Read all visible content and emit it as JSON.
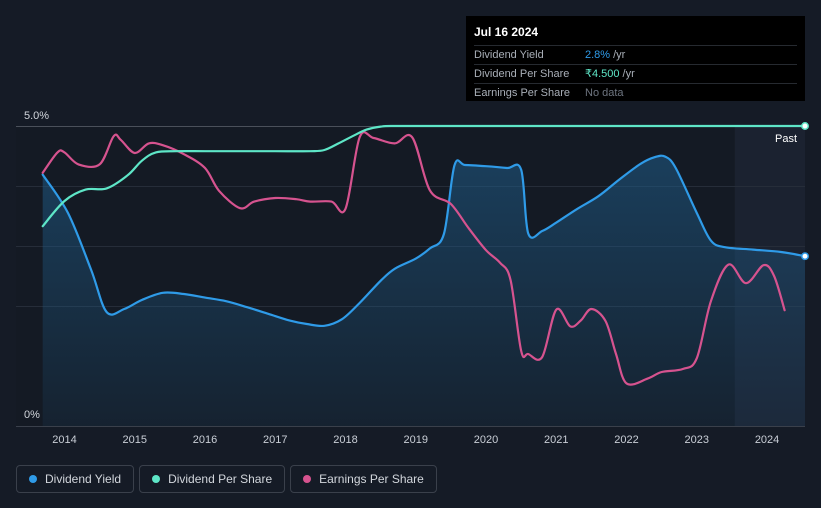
{
  "chart_data": {
    "type": "line",
    "y_axis_labels": [
      "5.0%",
      "0%"
    ],
    "ylim": [
      0,
      5
    ],
    "x_ticks": [
      "2014",
      "2015",
      "2016",
      "2017",
      "2018",
      "2019",
      "2020",
      "2021",
      "2022",
      "2023",
      "2024"
    ],
    "xlim": [
      2013.31,
      2024.54
    ],
    "past_label": "Past",
    "grid": true,
    "series": [
      {
        "name": "Dividend Yield",
        "color": "#2f9be8",
        "unit": "percent",
        "area": true,
        "points": [
          [
            2013.69,
            4.19
          ],
          [
            2014.05,
            3.55
          ],
          [
            2014.38,
            2.6
          ],
          [
            2014.6,
            1.9
          ],
          [
            2014.85,
            1.95
          ],
          [
            2015.1,
            2.1
          ],
          [
            2015.4,
            2.22
          ],
          [
            2015.7,
            2.2
          ],
          [
            2016.0,
            2.14
          ],
          [
            2016.3,
            2.08
          ],
          [
            2016.6,
            1.98
          ],
          [
            2016.9,
            1.87
          ],
          [
            2017.2,
            1.76
          ],
          [
            2017.45,
            1.7
          ],
          [
            2017.7,
            1.67
          ],
          [
            2017.95,
            1.78
          ],
          [
            2018.2,
            2.05
          ],
          [
            2018.5,
            2.42
          ],
          [
            2018.7,
            2.62
          ],
          [
            2019.0,
            2.79
          ],
          [
            2019.2,
            2.96
          ],
          [
            2019.4,
            3.2
          ],
          [
            2019.55,
            4.34
          ],
          [
            2019.7,
            4.35
          ],
          [
            2020.0,
            4.33
          ],
          [
            2020.3,
            4.3
          ],
          [
            2020.5,
            4.27
          ],
          [
            2020.6,
            3.21
          ],
          [
            2020.8,
            3.25
          ],
          [
            2021.0,
            3.39
          ],
          [
            2021.3,
            3.62
          ],
          [
            2021.6,
            3.83
          ],
          [
            2021.9,
            4.11
          ],
          [
            2022.2,
            4.37
          ],
          [
            2022.4,
            4.48
          ],
          [
            2022.55,
            4.49
          ],
          [
            2022.7,
            4.3
          ],
          [
            2023.0,
            3.55
          ],
          [
            2023.2,
            3.09
          ],
          [
            2023.4,
            2.98
          ],
          [
            2023.8,
            2.94
          ],
          [
            2024.2,
            2.9
          ],
          [
            2024.54,
            2.83
          ]
        ]
      },
      {
        "name": "Dividend Per Share",
        "color": "#5ee6c7",
        "unit": "INR",
        "points": [
          [
            2013.69,
            3.33
          ],
          [
            2014.0,
            3.75
          ],
          [
            2014.3,
            3.94
          ],
          [
            2014.6,
            3.96
          ],
          [
            2014.9,
            4.18
          ],
          [
            2015.1,
            4.42
          ],
          [
            2015.3,
            4.56
          ],
          [
            2015.6,
            4.58
          ],
          [
            2016.0,
            4.58
          ],
          [
            2016.5,
            4.58
          ],
          [
            2017.0,
            4.58
          ],
          [
            2017.5,
            4.58
          ],
          [
            2017.7,
            4.6
          ],
          [
            2017.9,
            4.71
          ],
          [
            2018.1,
            4.83
          ],
          [
            2018.3,
            4.94
          ],
          [
            2018.5,
            4.99
          ],
          [
            2018.7,
            5.0
          ],
          [
            2019.5,
            5.0
          ],
          [
            2020.5,
            5.0
          ],
          [
            2021.5,
            5.0
          ],
          [
            2022.5,
            5.0
          ],
          [
            2023.5,
            5.0
          ],
          [
            2024.54,
            5.0
          ]
        ]
      },
      {
        "name": "Earnings Per Share",
        "color": "#d6538f",
        "unit": "INR",
        "points": [
          [
            2013.69,
            4.22
          ],
          [
            2013.9,
            4.56
          ],
          [
            2014.0,
            4.56
          ],
          [
            2014.2,
            4.36
          ],
          [
            2014.5,
            4.36
          ],
          [
            2014.7,
            4.83
          ],
          [
            2014.8,
            4.77
          ],
          [
            2015.0,
            4.55
          ],
          [
            2015.2,
            4.71
          ],
          [
            2015.4,
            4.68
          ],
          [
            2015.7,
            4.53
          ],
          [
            2016.0,
            4.3
          ],
          [
            2016.2,
            3.92
          ],
          [
            2016.5,
            3.63
          ],
          [
            2016.7,
            3.74
          ],
          [
            2017.0,
            3.8
          ],
          [
            2017.3,
            3.78
          ],
          [
            2017.5,
            3.74
          ],
          [
            2017.8,
            3.74
          ],
          [
            2018.0,
            3.62
          ],
          [
            2018.2,
            4.81
          ],
          [
            2018.4,
            4.8
          ],
          [
            2018.7,
            4.71
          ],
          [
            2018.95,
            4.81
          ],
          [
            2019.2,
            3.93
          ],
          [
            2019.5,
            3.7
          ],
          [
            2019.75,
            3.3
          ],
          [
            2020.0,
            2.93
          ],
          [
            2020.2,
            2.72
          ],
          [
            2020.35,
            2.43
          ],
          [
            2020.5,
            1.25
          ],
          [
            2020.6,
            1.2
          ],
          [
            2020.8,
            1.15
          ],
          [
            2021.0,
            1.94
          ],
          [
            2021.2,
            1.66
          ],
          [
            2021.35,
            1.76
          ],
          [
            2021.5,
            1.95
          ],
          [
            2021.7,
            1.75
          ],
          [
            2021.85,
            1.2
          ],
          [
            2022.0,
            0.71
          ],
          [
            2022.3,
            0.79
          ],
          [
            2022.5,
            0.9
          ],
          [
            2022.8,
            0.95
          ],
          [
            2023.0,
            1.13
          ],
          [
            2023.2,
            2.08
          ],
          [
            2023.45,
            2.69
          ],
          [
            2023.7,
            2.38
          ],
          [
            2023.95,
            2.68
          ],
          [
            2024.1,
            2.5
          ],
          [
            2024.25,
            1.93
          ]
        ]
      }
    ],
    "forecast_region": {
      "from": 2023.54,
      "to": 2024.54
    }
  },
  "tooltip": {
    "date": "Jul 16 2024",
    "rows": [
      {
        "label": "Dividend Yield",
        "value": "2.8%",
        "unit": "/yr",
        "color": "#2f9be8"
      },
      {
        "label": "Dividend Per Share",
        "value": "₹4.500",
        "unit": "/yr",
        "color": "#5ee6c7"
      },
      {
        "label": "Earnings Per Share",
        "value": "No data",
        "unit": "",
        "color": "#6e7580"
      }
    ]
  },
  "legend": [
    {
      "label": "Dividend Yield",
      "color": "#2f9be8"
    },
    {
      "label": "Dividend Per Share",
      "color": "#5ee6c7"
    },
    {
      "label": "Earnings Per Share",
      "color": "#d6538f"
    }
  ]
}
